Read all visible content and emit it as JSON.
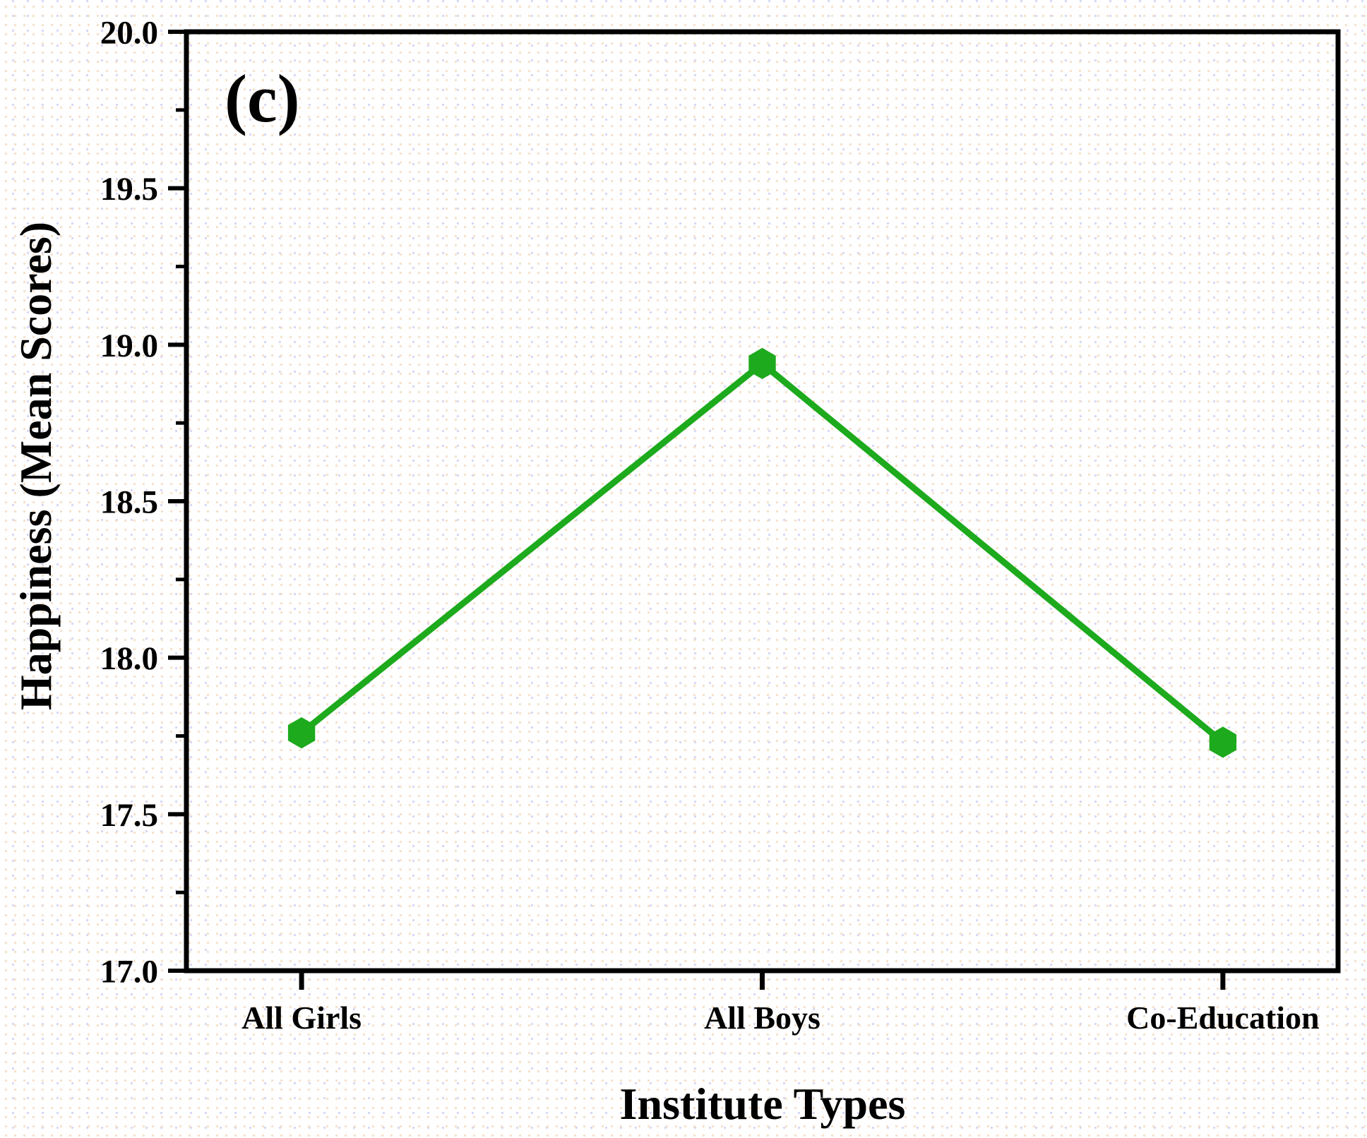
{
  "panel_label": "(c)",
  "colors": {
    "series_green": "#1daa1d",
    "axis_black": "#000000",
    "background_dot_peach": "#f4dbbe",
    "background_dot_lavender": "#cecbf2"
  },
  "chart_data": {
    "type": "line",
    "title": "",
    "xlabel": "Institute Types",
    "ylabel": "Happiness (Mean Scores)",
    "categories": [
      "All Girls",
      "All Boys",
      "Co-Education"
    ],
    "series": [
      {
        "name": "Happiness (Mean Scores)",
        "values": [
          17.76,
          18.94,
          17.73
        ]
      }
    ],
    "ylim": [
      17.0,
      20.0
    ],
    "ytick_step": 0.5,
    "yminor_step": 0.25,
    "ytick_labels": [
      "17.0",
      "17.5",
      "18.0",
      "18.5",
      "19.0",
      "19.5",
      "20.0"
    ],
    "marker": "hexagon",
    "line_color": "#1daa1d",
    "grid": false,
    "legend": false
  }
}
